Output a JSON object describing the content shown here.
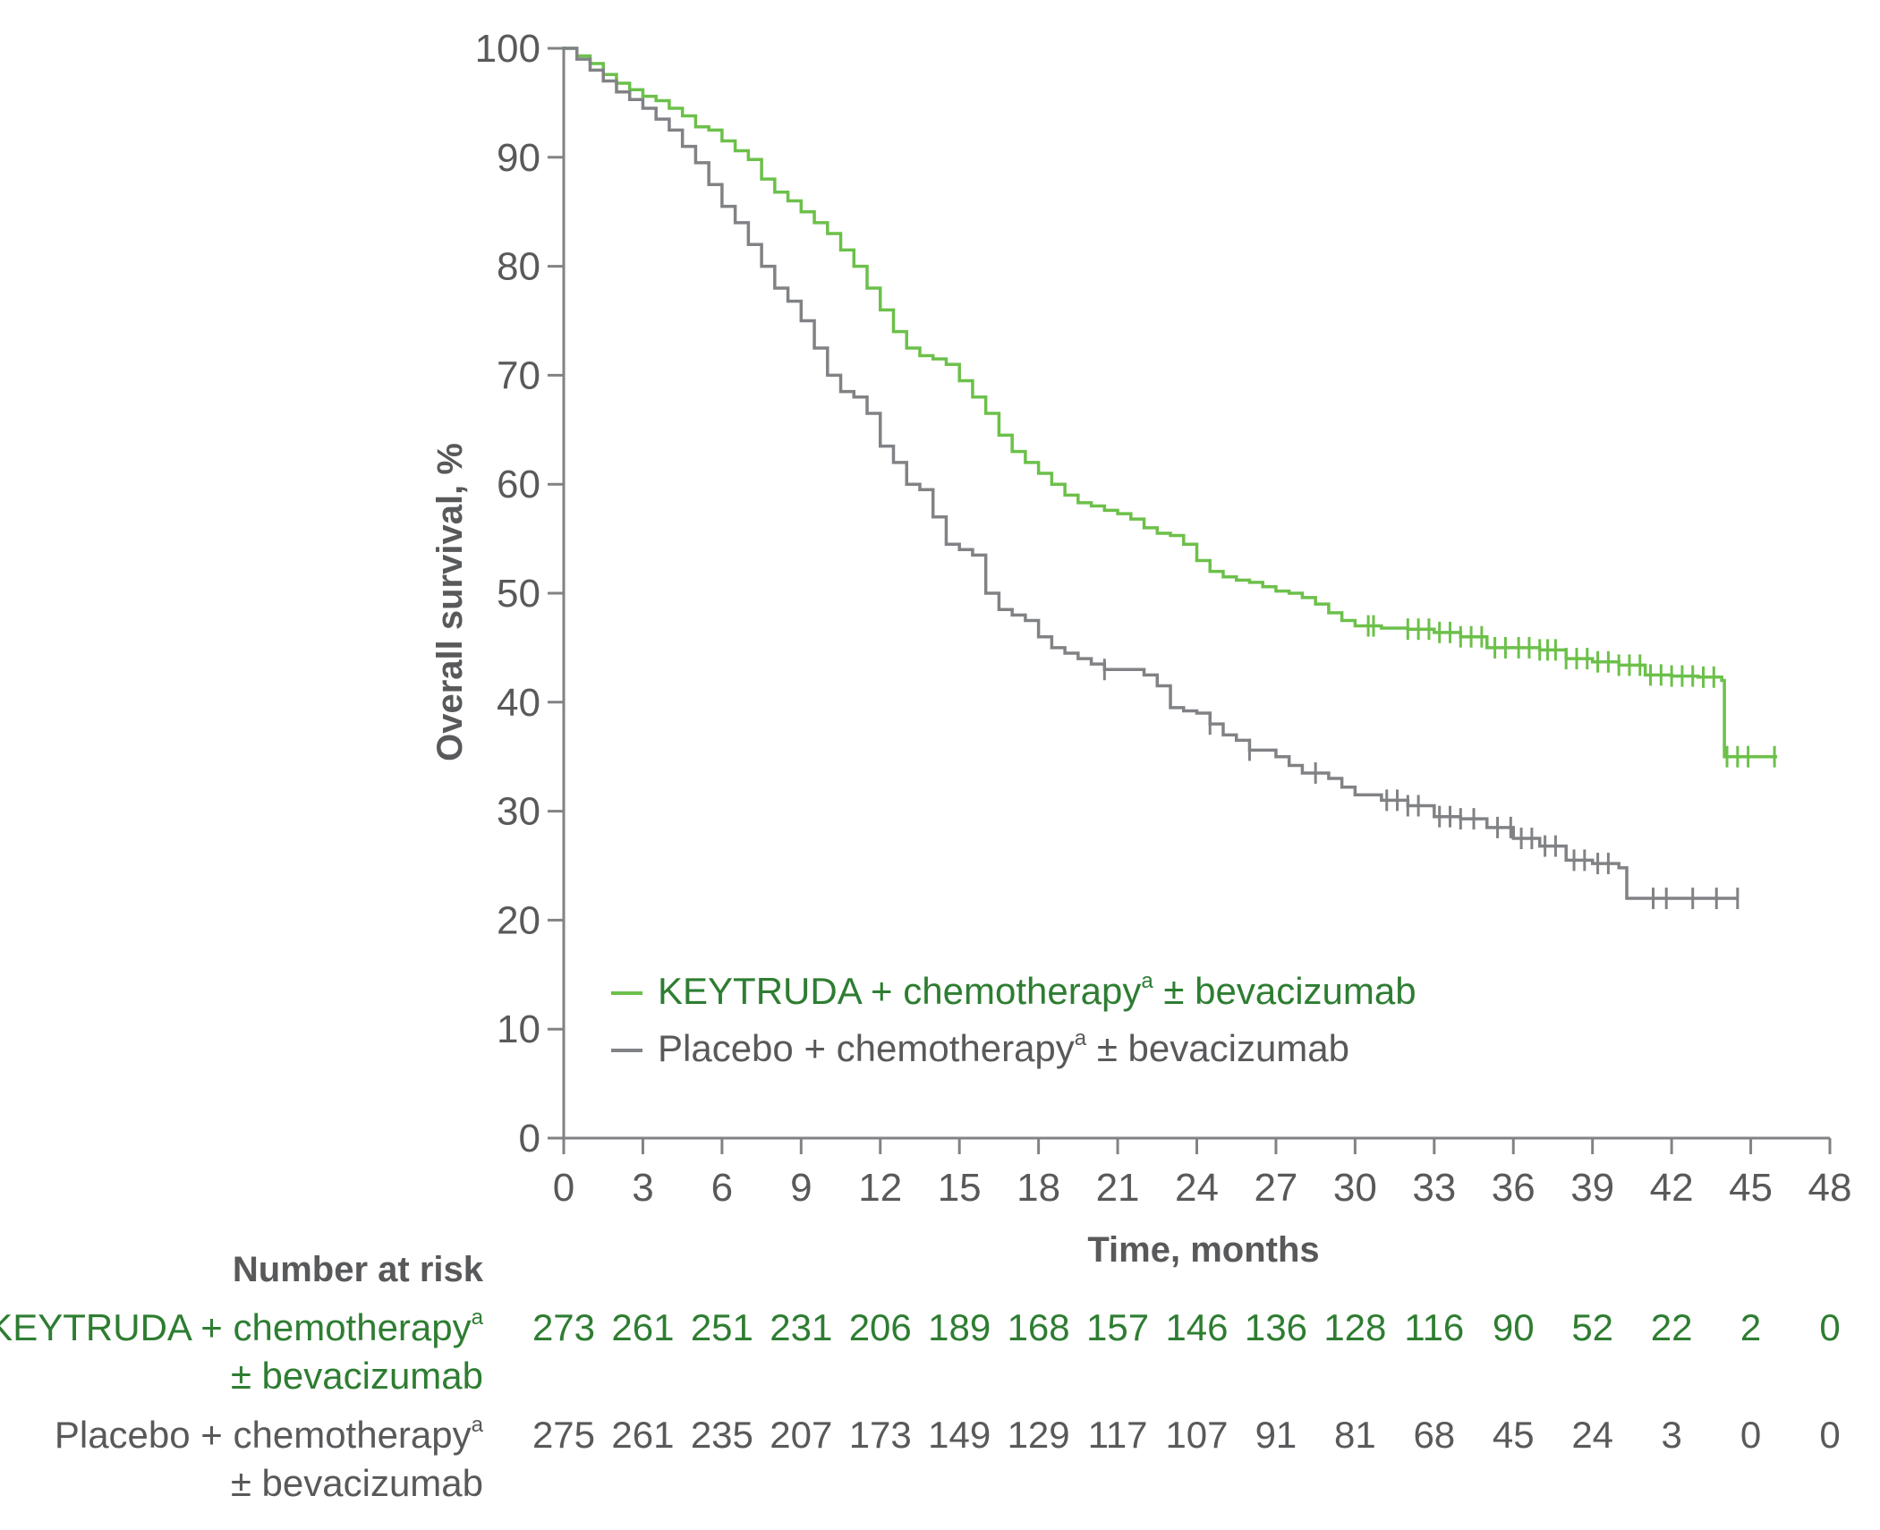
{
  "chart_data": {
    "type": "line",
    "subtype": "kaplan-meier",
    "ylabel": "Overall survival, %",
    "xlabel": "Time, months",
    "xlim": [
      0,
      48
    ],
    "ylim": [
      0,
      100
    ],
    "x_ticks": [
      "0",
      "3",
      "6",
      "9",
      "12",
      "15",
      "18",
      "21",
      "24",
      "27",
      "30",
      "33",
      "36",
      "39",
      "42",
      "45",
      "48"
    ],
    "y_ticks": [
      "0",
      "10",
      "20",
      "30",
      "40",
      "50",
      "60",
      "70",
      "80",
      "90",
      "100"
    ],
    "grid": false,
    "legend_placement": "bottom-left inside plot",
    "series": [
      {
        "name": "KEYTRUDA + chemotherapy",
        "name_sup": "a",
        "name_suffix": " ± bevacizumab",
        "color": "#6cc04a",
        "text_color": "#2e7d32",
        "points": [
          [
            0,
            100
          ],
          [
            0.5,
            99.3
          ],
          [
            1,
            98.6
          ],
          [
            1.5,
            97.6
          ],
          [
            2,
            96.8
          ],
          [
            2.5,
            96.2
          ],
          [
            3,
            95.6
          ],
          [
            3.5,
            95.2
          ],
          [
            4,
            94.5
          ],
          [
            4.5,
            93.8
          ],
          [
            5,
            92.8
          ],
          [
            5.5,
            92.5
          ],
          [
            6,
            91.5
          ],
          [
            6.5,
            90.6
          ],
          [
            7,
            89.8
          ],
          [
            7.5,
            88.0
          ],
          [
            8,
            86.8
          ],
          [
            8.5,
            86.0
          ],
          [
            9,
            85.0
          ],
          [
            9.5,
            84.0
          ],
          [
            10,
            83.0
          ],
          [
            10.5,
            81.5
          ],
          [
            11,
            80.0
          ],
          [
            11.5,
            78.0
          ],
          [
            12,
            76.0
          ],
          [
            12.5,
            74.0
          ],
          [
            13,
            72.5
          ],
          [
            13.5,
            71.8
          ],
          [
            14,
            71.5
          ],
          [
            14.5,
            71.0
          ],
          [
            15,
            69.5
          ],
          [
            15.5,
            68.0
          ],
          [
            16,
            66.5
          ],
          [
            16.5,
            64.5
          ],
          [
            17,
            63.0
          ],
          [
            17.5,
            62.0
          ],
          [
            18,
            61.0
          ],
          [
            18.5,
            60.0
          ],
          [
            19,
            59.0
          ],
          [
            19.5,
            58.3
          ],
          [
            20,
            58.0
          ],
          [
            20.5,
            57.6
          ],
          [
            21,
            57.3
          ],
          [
            21.5,
            56.8
          ],
          [
            22,
            56.0
          ],
          [
            22.5,
            55.5
          ],
          [
            23,
            55.3
          ],
          [
            23.5,
            54.5
          ],
          [
            24,
            53.0
          ],
          [
            24.5,
            52.0
          ],
          [
            25,
            51.5
          ],
          [
            25.5,
            51.2
          ],
          [
            26,
            51.0
          ],
          [
            26.5,
            50.6
          ],
          [
            27,
            50.2
          ],
          [
            27.5,
            50.0
          ],
          [
            28,
            49.6
          ],
          [
            28.5,
            49.0
          ],
          [
            29,
            48.2
          ],
          [
            29.5,
            47.5
          ],
          [
            30,
            47.0
          ],
          [
            31,
            46.8
          ],
          [
            32,
            46.7
          ],
          [
            33,
            46.4
          ],
          [
            34,
            46.0
          ],
          [
            35,
            45.0
          ],
          [
            36,
            45.0
          ],
          [
            37,
            44.8
          ],
          [
            38,
            44.0
          ],
          [
            39,
            43.7
          ],
          [
            40,
            43.4
          ],
          [
            41,
            42.5
          ],
          [
            42,
            42.4
          ],
          [
            43,
            42.3
          ],
          [
            43.9,
            42.0
          ],
          [
            44,
            35.0
          ],
          [
            46,
            35.0
          ]
        ],
        "censor_times": [
          30.5,
          30.7,
          32.0,
          32.4,
          32.8,
          33.2,
          33.6,
          34.0,
          34.4,
          34.8,
          35.3,
          35.7,
          36.2,
          36.6,
          37.0,
          37.3,
          37.6,
          38.0,
          38.4,
          38.8,
          39.2,
          39.6,
          40.0,
          40.4,
          40.8,
          41.2,
          41.6,
          42.0,
          42.4,
          42.8,
          43.2,
          43.6,
          44.1,
          44.5,
          44.9,
          45.9
        ]
      },
      {
        "name": "Placebo + chemotherapy",
        "name_sup": "a",
        "name_suffix": " ± bevacizumab",
        "color": "#808285",
        "text_color": "#58595b",
        "points": [
          [
            0,
            100
          ],
          [
            0.5,
            99.0
          ],
          [
            1,
            98.0
          ],
          [
            1.5,
            97.0
          ],
          [
            2,
            96.0
          ],
          [
            2.5,
            95.3
          ],
          [
            3,
            94.5
          ],
          [
            3.5,
            93.5
          ],
          [
            4,
            92.5
          ],
          [
            4.5,
            91.0
          ],
          [
            5,
            89.5
          ],
          [
            5.5,
            87.5
          ],
          [
            6,
            85.5
          ],
          [
            6.5,
            84.0
          ],
          [
            7,
            82.0
          ],
          [
            7.5,
            80.0
          ],
          [
            8,
            78.0
          ],
          [
            8.5,
            76.8
          ],
          [
            9,
            75.0
          ],
          [
            9.5,
            72.5
          ],
          [
            10,
            70.0
          ],
          [
            10.5,
            68.5
          ],
          [
            11,
            68.0
          ],
          [
            11.5,
            66.5
          ],
          [
            12,
            63.5
          ],
          [
            12.5,
            62.0
          ],
          [
            13,
            60.0
          ],
          [
            13.5,
            59.5
          ],
          [
            14,
            57.0
          ],
          [
            14.5,
            54.5
          ],
          [
            15,
            54.0
          ],
          [
            15.5,
            53.5
          ],
          [
            16,
            50.0
          ],
          [
            16.5,
            48.5
          ],
          [
            17,
            48.0
          ],
          [
            17.5,
            47.5
          ],
          [
            18,
            46.0
          ],
          [
            18.5,
            45.0
          ],
          [
            19,
            44.5
          ],
          [
            19.5,
            44.0
          ],
          [
            20,
            43.5
          ],
          [
            20.5,
            43.0
          ],
          [
            21,
            43.0
          ],
          [
            22,
            42.5
          ],
          [
            22.5,
            41.5
          ],
          [
            23,
            39.5
          ],
          [
            23.5,
            39.2
          ],
          [
            24,
            39.0
          ],
          [
            24.5,
            38.0
          ],
          [
            25,
            37.0
          ],
          [
            25.5,
            36.5
          ],
          [
            26,
            35.6
          ],
          [
            27,
            35.0
          ],
          [
            27.5,
            34.2
          ],
          [
            28,
            33.5
          ],
          [
            29,
            33.0
          ],
          [
            29.5,
            32.2
          ],
          [
            30,
            31.5
          ],
          [
            31,
            31.0
          ],
          [
            32,
            30.5
          ],
          [
            33,
            29.5
          ],
          [
            34,
            29.3
          ],
          [
            35,
            28.5
          ],
          [
            36,
            27.5
          ],
          [
            37,
            26.8
          ],
          [
            38,
            25.5
          ],
          [
            39,
            25.2
          ],
          [
            40,
            24.8
          ],
          [
            40.3,
            22.0
          ],
          [
            44.5,
            22.0
          ]
        ],
        "censor_times": [
          20.5,
          24.5,
          26.0,
          28.5,
          31.2,
          31.6,
          32.0,
          32.4,
          33.2,
          33.6,
          34.0,
          34.5,
          35.4,
          35.9,
          36.3,
          36.7,
          37.2,
          37.6,
          38.3,
          38.7,
          39.2,
          39.6,
          41.3,
          41.8,
          42.8,
          43.7,
          44.5
        ]
      }
    ],
    "risk_table": {
      "title": "Number at risk",
      "rows": [
        {
          "label_line1": "KEYTRUDA + chemotherapy",
          "label_sup": "a",
          "label_line2": "± bevacizumab",
          "color": "#2e7d32",
          "values": [
            "273",
            "261",
            "251",
            "231",
            "206",
            "189",
            "168",
            "157",
            "146",
            "136",
            "128",
            "116",
            "90",
            "52",
            "22",
            "2",
            "0"
          ]
        },
        {
          "label_line1": "Placebo + chemotherapy",
          "label_sup": "a",
          "label_line2": "± bevacizumab",
          "color": "#58595b",
          "values": [
            "275",
            "261",
            "235",
            "207",
            "173",
            "149",
            "129",
            "117",
            "107",
            "91",
            "81",
            "68",
            "45",
            "24",
            "3",
            "0",
            "0"
          ]
        }
      ]
    }
  }
}
